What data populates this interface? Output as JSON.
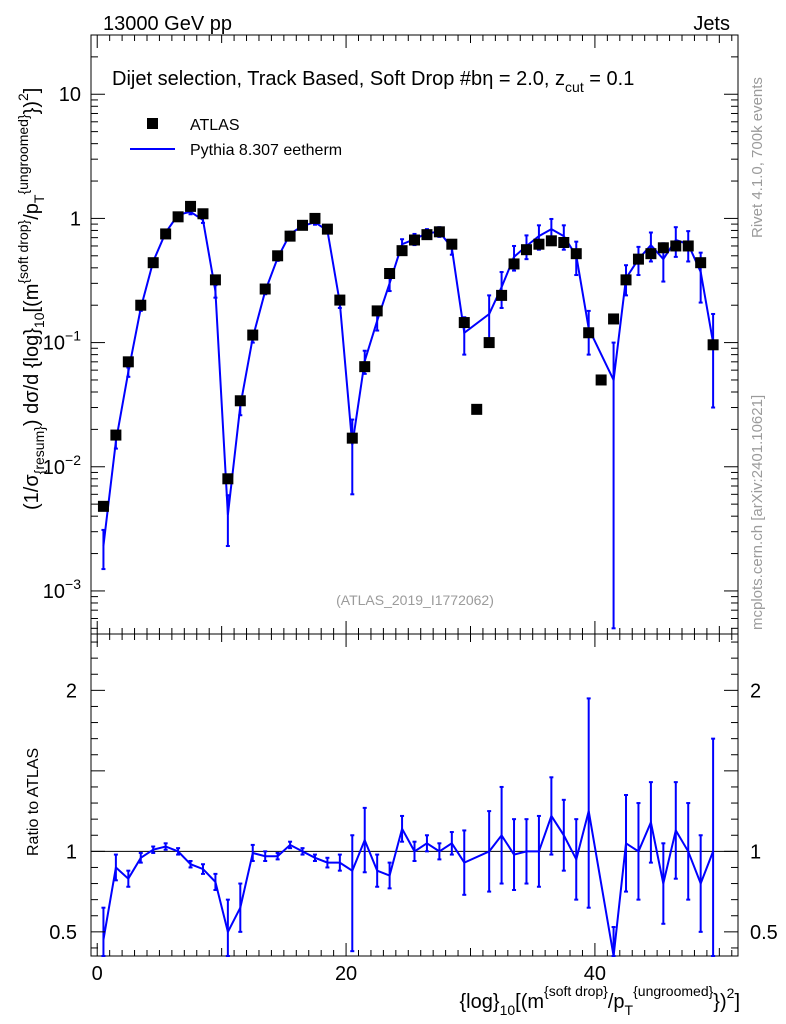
{
  "header": {
    "energy_label": "13000 GeV pp",
    "category_label": "Jets"
  },
  "side_text": {
    "rivet": "Rivet 4.1.0,  700k events",
    "mcplots": "mcplots.cern.ch [arXiv:2401.10621]"
  },
  "chart_data": [
    {
      "type": "scatter+line",
      "panel": "main",
      "title_parts": {
        "prefix": "Dijet selection, Track Based, Soft Drop #b",
        "eta": "η = 2.0, z",
        "zcut_sub": "cut",
        "suffix": " = 0.1"
      },
      "ylabel_parts": {
        "a": "(1/σ",
        "resum_sub": "{resum}",
        "b": ") dσ/d {log}",
        "ten_sub": "10",
        "c": "[(m",
        "softdrop_sup": "{soft drop}",
        "d": "/p",
        "T_sub": "T",
        "ungroomed_sup": "{ungroomed}",
        "e": "})",
        "two_sup": "2",
        "f": "]"
      },
      "yscale": "log",
      "ylim": [
        0.00045,
        30
      ],
      "xlim": [
        -0.5,
        51.5
      ],
      "ytick_labels": [
        {
          "value": 10,
          "label": "10"
        },
        {
          "value": 1,
          "label": "1"
        },
        {
          "value": 0.1,
          "base": "10",
          "exp": "−1"
        },
        {
          "value": 0.01,
          "base": "10",
          "exp": "−2"
        },
        {
          "value": 0.001,
          "base": "10",
          "exp": "−3"
        }
      ],
      "legend": {
        "position": "top-left",
        "entries": [
          {
            "label": "ATLAS",
            "marker": "square",
            "color": "#000000"
          },
          {
            "label": "Pythia 8.307 eetherm",
            "marker": "line",
            "color": "#0000ff"
          }
        ]
      },
      "watermark": "(ATLAS_2019_I1772062)",
      "series": [
        {
          "name": "ATLAS",
          "color": "#000000",
          "x": [
            0.5,
            1.5,
            2.5,
            3.5,
            4.5,
            5.5,
            6.5,
            7.5,
            8.5,
            9.5,
            10.5,
            11.5,
            12.5,
            13.5,
            14.5,
            15.5,
            16.5,
            17.5,
            18.5,
            19.5,
            20.5,
            21.5,
            22.5,
            23.5,
            24.5,
            25.5,
            26.5,
            27.5,
            28.5,
            29.5,
            30.5,
            31.5,
            32.5,
            33.5,
            34.5,
            35.5,
            36.5,
            37.5,
            38.5,
            39.5,
            40.5,
            41.5,
            42.5,
            43.5,
            44.5,
            45.5,
            46.5,
            47.5,
            48.5,
            49.5
          ],
          "y": [
            0.0048,
            0.018,
            0.07,
            0.2,
            0.44,
            0.75,
            1.03,
            1.25,
            1.09,
            0.32,
            0.008,
            0.034,
            0.115,
            0.27,
            0.5,
            0.72,
            0.88,
            1.0,
            0.82,
            0.22,
            0.017,
            0.064,
            0.18,
            0.36,
            0.55,
            0.67,
            0.74,
            0.78,
            0.62,
            0.145,
            0.029,
            0.1,
            0.24,
            0.43,
            0.56,
            0.62,
            0.66,
            0.64,
            0.52,
            0.12,
            0.05,
            0.155,
            0.32,
            0.47,
            0.52,
            0.58,
            0.6,
            0.6,
            0.44,
            0.096
          ]
        },
        {
          "name": "Pythia 8.307 eetherm",
          "color": "#0000ff",
          "x": [
            0.5,
            1.5,
            2.5,
            3.5,
            4.5,
            5.5,
            6.5,
            7.5,
            8.5,
            9.5,
            10.5,
            11.5,
            12.5,
            13.5,
            14.5,
            15.5,
            16.5,
            17.5,
            18.5,
            19.5,
            20.5,
            21.5,
            22.5,
            23.5,
            24.5,
            25.5,
            26.5,
            27.5,
            28.5,
            29.5,
            31.5,
            32.5,
            33.5,
            34.5,
            35.5,
            36.5,
            37.5,
            38.5,
            39.5,
            41.5,
            42.5,
            43.5,
            44.5,
            45.5,
            46.5,
            47.5,
            48.5,
            49.5
          ],
          "y": [
            0.0023,
            0.016,
            0.058,
            0.19,
            0.45,
            0.77,
            1.07,
            1.13,
            0.97,
            0.26,
            0.0041,
            0.031,
            0.11,
            0.26,
            0.48,
            0.75,
            0.87,
            0.93,
            0.8,
            0.21,
            0.015,
            0.071,
            0.15,
            0.3,
            0.62,
            0.68,
            0.76,
            0.78,
            0.58,
            0.12,
            0.17,
            0.28,
            0.49,
            0.6,
            0.72,
            0.82,
            0.72,
            0.5,
            0.13,
            0.05,
            0.33,
            0.47,
            0.61,
            0.47,
            0.67,
            0.62,
            0.37,
            0.1
          ],
          "y_err_low": [
            0.0008,
            0.002,
            0.005,
            0.01,
            0.02,
            0.03,
            0.04,
            0.05,
            0.05,
            0.03,
            0.0018,
            0.005,
            0.01,
            0.015,
            0.025,
            0.03,
            0.04,
            0.04,
            0.04,
            0.02,
            0.009,
            0.015,
            0.025,
            0.04,
            0.06,
            0.07,
            0.06,
            0.07,
            0.07,
            0.04,
            0.07,
            0.09,
            0.11,
            0.13,
            0.16,
            0.17,
            0.16,
            0.15,
            0.05,
            0.0495,
            0.09,
            0.12,
            0.16,
            0.16,
            0.18,
            0.17,
            0.16,
            0.07
          ],
          "y_err_high": [
            0.0008,
            0.002,
            0.005,
            0.01,
            0.02,
            0.03,
            0.04,
            0.05,
            0.05,
            0.03,
            0.0018,
            0.005,
            0.01,
            0.015,
            0.025,
            0.03,
            0.04,
            0.04,
            0.04,
            0.02,
            0.009,
            0.015,
            0.025,
            0.04,
            0.06,
            0.07,
            0.06,
            0.07,
            0.07,
            0.04,
            0.07,
            0.09,
            0.11,
            0.13,
            0.16,
            0.17,
            0.16,
            0.15,
            0.05,
            0.05,
            0.09,
            0.12,
            0.16,
            0.16,
            0.18,
            0.17,
            0.16,
            0.07
          ]
        }
      ]
    },
    {
      "type": "line",
      "panel": "ratio",
      "ylabel": "Ratio to ATLAS",
      "xlabel_parts": {
        "a": "{log}",
        "ten_sub": "10",
        "b": "[(m",
        "softdrop_sup": "{soft drop}",
        "c": "/p",
        "T_sub": "T",
        "ungroomed_sup": "{ungroomed}",
        "d": "})",
        "two_sup": "2",
        "e": "]"
      },
      "xlim": [
        -0.5,
        51.5
      ],
      "ylim": [
        0.35,
        2.35
      ],
      "reference_line": 1,
      "xtick_labels": [
        {
          "value": 0,
          "label": "0"
        },
        {
          "value": 20,
          "label": "20"
        },
        {
          "value": 40,
          "label": "40"
        }
      ],
      "ytick_labels": [
        {
          "value": 0.5,
          "label": "0.5"
        },
        {
          "value": 1,
          "label": "1"
        },
        {
          "value": 2,
          "label": "2"
        }
      ],
      "series": [
        {
          "name": "Pythia 8.307 eetherm / ATLAS",
          "color": "#0000ff",
          "x": [
            0.5,
            1.5,
            2.5,
            3.5,
            4.5,
            5.5,
            6.5,
            7.5,
            8.5,
            9.5,
            10.5,
            11.5,
            12.5,
            13.5,
            14.5,
            15.5,
            16.5,
            17.5,
            18.5,
            19.5,
            20.5,
            21.5,
            22.5,
            23.5,
            24.5,
            25.5,
            26.5,
            27.5,
            28.5,
            29.5,
            31.5,
            32.5,
            33.5,
            34.5,
            35.5,
            36.5,
            37.5,
            38.5,
            39.5,
            41.5,
            42.5,
            43.5,
            44.5,
            45.5,
            46.5,
            47.5,
            48.5,
            49.5
          ],
          "y": [
            0.45,
            0.9,
            0.83,
            0.96,
            1.01,
            1.03,
            1.0,
            0.92,
            0.89,
            0.81,
            0.5,
            0.65,
            0.99,
            0.97,
            0.97,
            1.04,
            1.0,
            0.96,
            0.93,
            0.93,
            0.88,
            1.07,
            0.88,
            0.85,
            1.14,
            1.0,
            1.05,
            1.0,
            1.05,
            0.93,
            1.0,
            1.1,
            0.98,
            1.0,
            1.0,
            1.22,
            1.1,
            0.95,
            1.25,
            0.33,
            1.05,
            1.0,
            1.18,
            0.8,
            1.13,
            1.0,
            0.8,
            1.0
          ],
          "y_err_low": [
            0.2,
            0.08,
            0.05,
            0.03,
            0.02,
            0.02,
            0.02,
            0.02,
            0.03,
            0.05,
            0.2,
            0.15,
            0.05,
            0.03,
            0.02,
            0.02,
            0.02,
            0.02,
            0.03,
            0.05,
            0.5,
            0.2,
            0.1,
            0.08,
            0.08,
            0.06,
            0.05,
            0.05,
            0.07,
            0.2,
            0.25,
            0.3,
            0.22,
            0.2,
            0.22,
            0.24,
            0.22,
            0.25,
            0.6,
            0.2,
            0.3,
            0.3,
            0.25,
            0.25,
            0.3,
            0.3,
            0.3,
            0.7
          ],
          "y_err_high": [
            0.2,
            0.08,
            0.05,
            0.03,
            0.02,
            0.02,
            0.02,
            0.02,
            0.03,
            0.05,
            0.2,
            0.15,
            0.05,
            0.03,
            0.02,
            0.02,
            0.02,
            0.02,
            0.03,
            0.05,
            0.22,
            0.2,
            0.1,
            0.08,
            0.08,
            0.06,
            0.05,
            0.05,
            0.07,
            0.2,
            0.25,
            0.3,
            0.22,
            0.2,
            0.22,
            0.24,
            0.22,
            0.25,
            0.7,
            0.2,
            0.3,
            0.3,
            0.25,
            0.25,
            0.3,
            0.3,
            0.3,
            0.7
          ]
        }
      ]
    }
  ]
}
